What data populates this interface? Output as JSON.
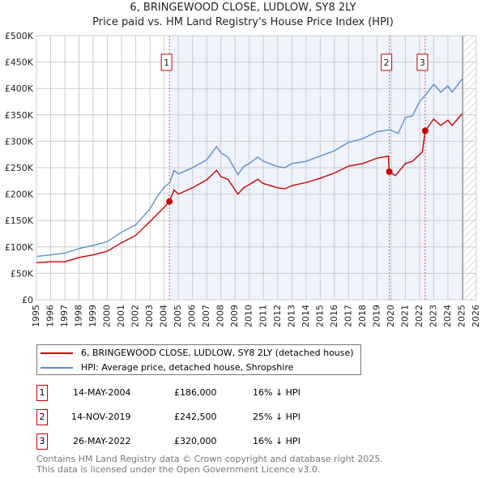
{
  "chart_data": {
    "type": "line",
    "title": "6, BRINGEWOOD CLOSE, LUDLOW, SY8 2LY",
    "subtitle": "Price paid vs. HM Land Registry's House Price Index (HPI)",
    "xlabel": "",
    "ylabel": "",
    "xlim": [
      1995,
      2026
    ],
    "ylim": [
      0,
      500000
    ],
    "x_ticks": [
      "1995",
      "1996",
      "1997",
      "1998",
      "1999",
      "2000",
      "2001",
      "2002",
      "2003",
      "2004",
      "2005",
      "2006",
      "2007",
      "2008",
      "2009",
      "2010",
      "2011",
      "2012",
      "2013",
      "2014",
      "2015",
      "2016",
      "2017",
      "2018",
      "2019",
      "2020",
      "2021",
      "2022",
      "2023",
      "2024",
      "2025",
      "2026"
    ],
    "y_ticks": [
      {
        "v": 0,
        "label": "£0"
      },
      {
        "v": 50000,
        "label": "£50K"
      },
      {
        "v": 100000,
        "label": "£100K"
      },
      {
        "v": 150000,
        "label": "£150K"
      },
      {
        "v": 200000,
        "label": "£200K"
      },
      {
        "v": 250000,
        "label": "£250K"
      },
      {
        "v": 300000,
        "label": "£300K"
      },
      {
        "v": 350000,
        "label": "£350K"
      },
      {
        "v": 400000,
        "label": "£400K"
      },
      {
        "v": 450000,
        "label": "£450K"
      },
      {
        "v": 500000,
        "label": "£500K"
      }
    ],
    "grid": true,
    "series": [
      {
        "name": "6, BRINGEWOOD CLOSE, LUDLOW, SY8 2LY (detached house)",
        "color": "#cc0000",
        "points": [
          [
            1995,
            70
          ],
          [
            1996,
            72
          ],
          [
            1997,
            72
          ],
          [
            1998,
            80
          ],
          [
            1999,
            85
          ],
          [
            2000,
            92
          ],
          [
            2001,
            108
          ],
          [
            2002,
            122
          ],
          [
            2003,
            148
          ],
          [
            2004,
            175
          ],
          [
            2004.37,
            186
          ],
          [
            2004.7,
            208
          ],
          [
            2005,
            200
          ],
          [
            2006,
            212
          ],
          [
            2007,
            227
          ],
          [
            2007.7,
            245
          ],
          [
            2008,
            233
          ],
          [
            2008.5,
            228
          ],
          [
            2009.2,
            200
          ],
          [
            2009.6,
            212
          ],
          [
            2010,
            218
          ],
          [
            2010.6,
            228
          ],
          [
            2011,
            220
          ],
          [
            2012,
            212
          ],
          [
            2012.5,
            210
          ],
          [
            2013,
            216
          ],
          [
            2014,
            222
          ],
          [
            2015,
            230
          ],
          [
            2016,
            240
          ],
          [
            2017,
            253
          ],
          [
            2018,
            258
          ],
          [
            2019,
            268
          ],
          [
            2019.8,
            272
          ],
          [
            2019.87,
            242.5
          ],
          [
            2020.3,
            235
          ],
          [
            2021,
            258
          ],
          [
            2021.5,
            262
          ],
          [
            2022.2,
            280
          ],
          [
            2022.4,
            320
          ],
          [
            2023,
            342
          ],
          [
            2023.5,
            330
          ],
          [
            2024,
            340
          ],
          [
            2024.3,
            330
          ],
          [
            2025,
            352
          ]
        ]
      },
      {
        "name": "HPI: Average price, detached house, Shropshire",
        "color": "#5b8fd0",
        "points": [
          [
            1995,
            82
          ],
          [
            1996,
            85
          ],
          [
            1997,
            88
          ],
          [
            1998,
            97
          ],
          [
            1999,
            103
          ],
          [
            2000,
            110
          ],
          [
            2001,
            128
          ],
          [
            2002,
            142
          ],
          [
            2003,
            172
          ],
          [
            2003.5,
            195
          ],
          [
            2004,
            213
          ],
          [
            2004.4,
            222
          ],
          [
            2004.7,
            245
          ],
          [
            2005,
            238
          ],
          [
            2006,
            250
          ],
          [
            2007,
            265
          ],
          [
            2007.7,
            290
          ],
          [
            2008,
            278
          ],
          [
            2008.5,
            270
          ],
          [
            2009.2,
            237
          ],
          [
            2009.6,
            252
          ],
          [
            2010,
            258
          ],
          [
            2010.6,
            270
          ],
          [
            2011,
            262
          ],
          [
            2012,
            252
          ],
          [
            2012.5,
            250
          ],
          [
            2013,
            258
          ],
          [
            2014,
            262
          ],
          [
            2015,
            272
          ],
          [
            2016,
            282
          ],
          [
            2017,
            298
          ],
          [
            2018,
            305
          ],
          [
            2019,
            318
          ],
          [
            2019.9,
            322
          ],
          [
            2020.5,
            315
          ],
          [
            2021,
            345
          ],
          [
            2021.5,
            348
          ],
          [
            2022,
            375
          ],
          [
            2022.5,
            390
          ],
          [
            2023,
            408
          ],
          [
            2023.5,
            393
          ],
          [
            2024,
            405
          ],
          [
            2024.3,
            393
          ],
          [
            2025,
            418
          ]
        ]
      }
    ],
    "value_unit": "£ thousands",
    "annotations": [
      {
        "label": "1",
        "x": 2004.37,
        "y": 186
      },
      {
        "label": "2",
        "x": 2019.87,
        "y": 242.5
      },
      {
        "label": "3",
        "x": 2022.4,
        "y": 320
      }
    ],
    "shaded_region": [
      2004.37,
      2025.0
    ],
    "forecast_hatch": [
      2025.05,
      2026
    ]
  },
  "legend": {
    "property": "6, BRINGEWOOD CLOSE, LUDLOW, SY8 2LY (detached house)",
    "hpi": "HPI: Average price, detached house, Shropshire"
  },
  "sales": [
    {
      "num": "1",
      "date": "14-MAY-2004",
      "price": "£186,000",
      "diff": "16% ↓ HPI"
    },
    {
      "num": "2",
      "date": "14-NOV-2019",
      "price": "£242,500",
      "diff": "25% ↓ HPI"
    },
    {
      "num": "3",
      "date": "26-MAY-2022",
      "price": "£320,000",
      "diff": "16% ↓ HPI"
    }
  ],
  "footer": {
    "line1": "Contains HM Land Registry data © Crown copyright and database right 2025.",
    "line2": "This data is licensed under the Open Government Licence v3.0."
  }
}
